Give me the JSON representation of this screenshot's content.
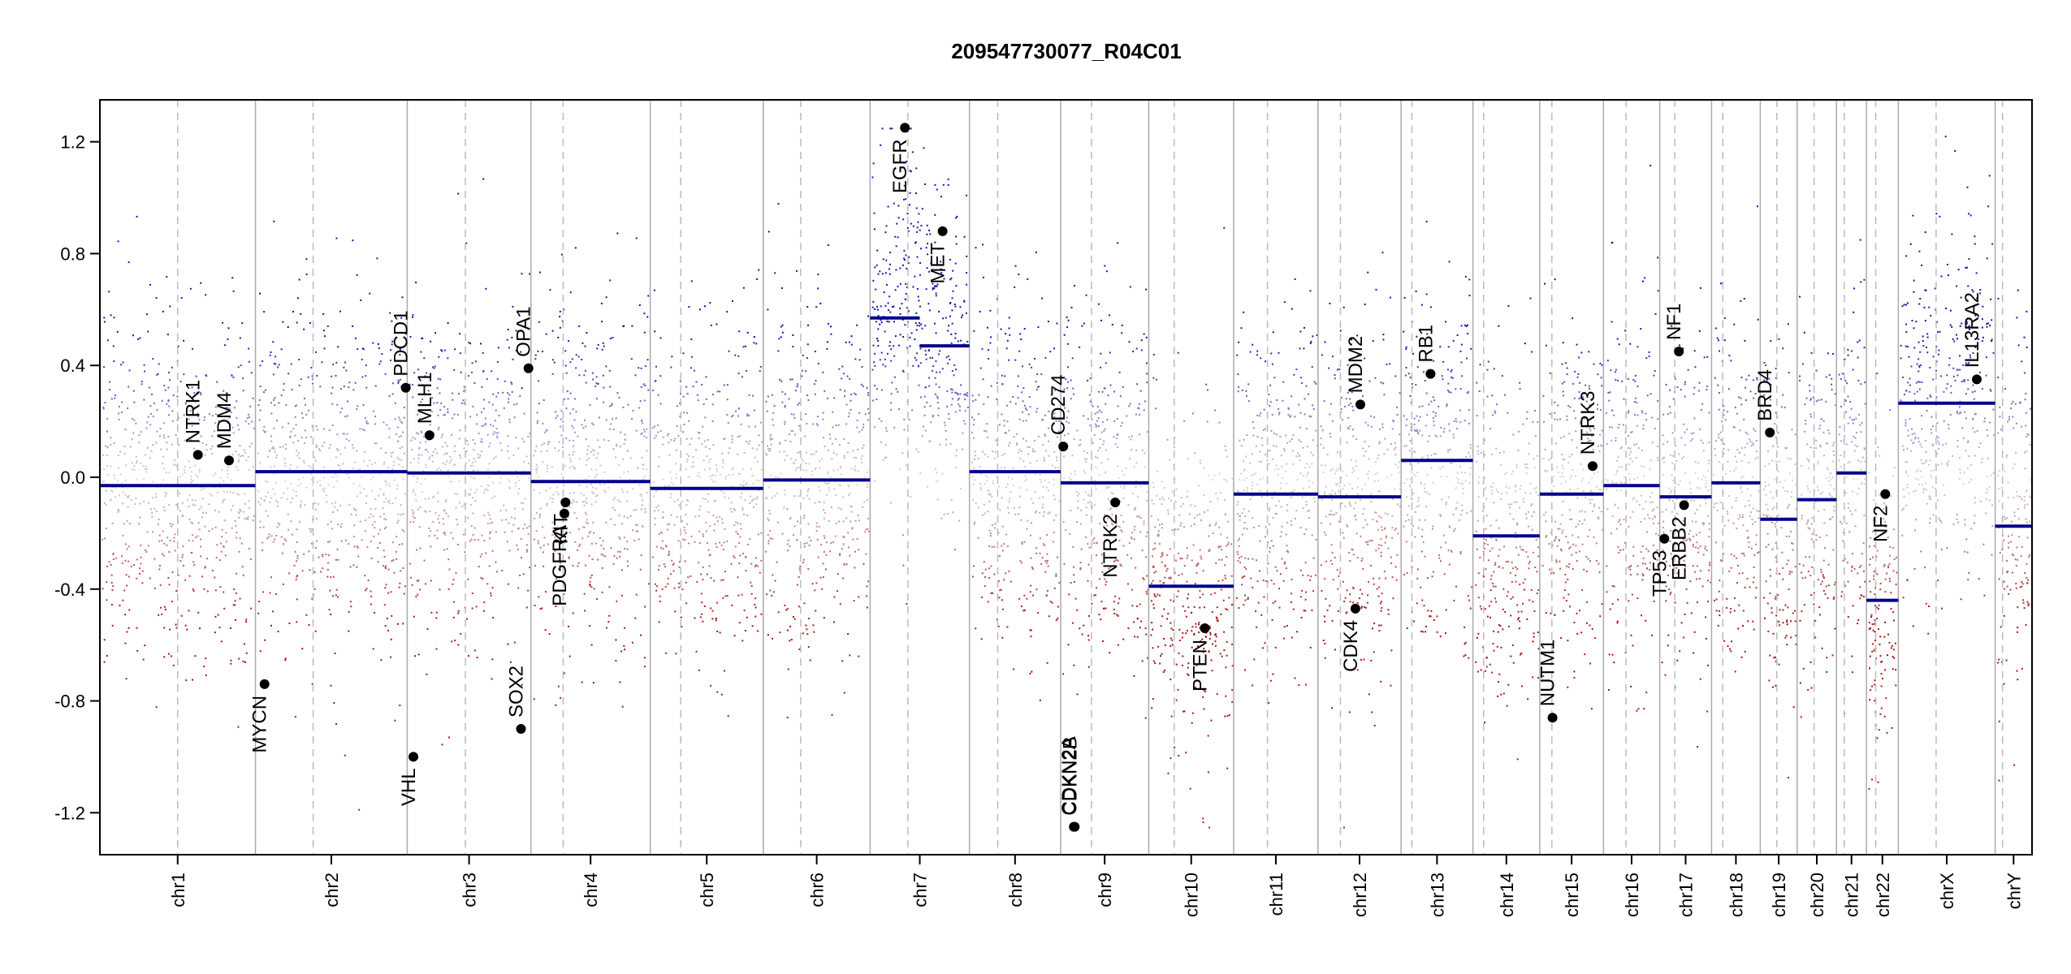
{
  "chart_data": {
    "type": "scatter",
    "title": "209547730077_R04C01",
    "xlabel": "",
    "ylabel": "",
    "ylim": [
      -1.35,
      1.35
    ],
    "yticks": [
      "1.2",
      "0.8",
      "0.4",
      "0.0",
      "-0.4",
      "-0.8",
      "-1.2"
    ],
    "colors": {
      "gain": "#1a1aa8",
      "loss": "#b01a1a",
      "segment": "#00008b",
      "separator": "#aaaaaa",
      "marker": "#000000"
    },
    "chromosomes": [
      {
        "name": "chr1",
        "length": 249,
        "centromere": 0.5,
        "segments": [
          -0.03
        ]
      },
      {
        "name": "chr2",
        "length": 243,
        "centromere": 0.38,
        "segments": [
          0.02
        ]
      },
      {
        "name": "chr3",
        "length": 198,
        "centromere": 0.47,
        "segments": [
          0.015
        ]
      },
      {
        "name": "chr4",
        "length": 191,
        "centromere": 0.27,
        "segments": [
          -0.015
        ]
      },
      {
        "name": "chr5",
        "length": 181,
        "centromere": 0.27,
        "segments": [
          -0.04
        ]
      },
      {
        "name": "chr6",
        "length": 171,
        "centromere": 0.35,
        "segments": [
          -0.01
        ]
      },
      {
        "name": "chr7",
        "length": 159,
        "centromere": 0.38,
        "segments": [
          0.57,
          0.47
        ]
      },
      {
        "name": "chr8",
        "length": 146,
        "centromere": 0.31,
        "segments": [
          0.02
        ]
      },
      {
        "name": "chr9",
        "length": 141,
        "centromere": 0.35,
        "segments": [
          -0.02
        ]
      },
      {
        "name": "chr10",
        "length": 136,
        "centromere": 0.3,
        "segments": [
          -0.39
        ]
      },
      {
        "name": "chr11",
        "length": 135,
        "centromere": 0.4,
        "segments": [
          -0.06
        ]
      },
      {
        "name": "chr12",
        "length": 133,
        "centromere": 0.27,
        "segments": [
          -0.07
        ]
      },
      {
        "name": "chr13",
        "length": 115,
        "centromere": 0.15,
        "segments": [
          0.06
        ]
      },
      {
        "name": "chr14",
        "length": 107,
        "centromere": 0.16,
        "segments": [
          -0.21
        ]
      },
      {
        "name": "chr15",
        "length": 102,
        "centromere": 0.19,
        "segments": [
          -0.06
        ]
      },
      {
        "name": "chr16",
        "length": 90,
        "centromere": 0.4,
        "segments": [
          -0.03
        ]
      },
      {
        "name": "chr17",
        "length": 83,
        "centromere": 0.29,
        "segments": [
          -0.07
        ]
      },
      {
        "name": "chr18",
        "length": 78,
        "centromere": 0.23,
        "segments": [
          -0.02
        ]
      },
      {
        "name": "chr19",
        "length": 59,
        "centromere": 0.45,
        "segments": [
          -0.15
        ]
      },
      {
        "name": "chr20",
        "length": 63,
        "centromere": 0.43,
        "segments": [
          -0.08
        ]
      },
      {
        "name": "chr21",
        "length": 48,
        "centromere": 0.26,
        "segments": [
          0.015
        ]
      },
      {
        "name": "chr22",
        "length": 51,
        "centromere": 0.29,
        "segments": [
          -0.44
        ]
      },
      {
        "name": "chrX",
        "length": 155,
        "centromere": 0.39,
        "segments": [
          0.265
        ]
      },
      {
        "name": "chrY",
        "length": 59,
        "centromere": 0.2,
        "segments": [
          -0.175
        ]
      }
    ],
    "genes": [
      {
        "name": "NTRK1",
        "chr": "chr1",
        "pos": 0.63,
        "value": 0.08,
        "label_side": "above"
      },
      {
        "name": "MDM4",
        "chr": "chr1",
        "pos": 0.83,
        "value": 0.06,
        "label_side": "above"
      },
      {
        "name": "MYCN",
        "chr": "chr2",
        "pos": 0.06,
        "value": -0.74,
        "label_side": "below"
      },
      {
        "name": "PDCD1",
        "chr": "chr2",
        "pos": 0.99,
        "value": 0.32,
        "label_side": "above"
      },
      {
        "name": "VHL",
        "chr": "chr3",
        "pos": 0.05,
        "value": -1.0,
        "label_side": "below"
      },
      {
        "name": "MLH1",
        "chr": "chr3",
        "pos": 0.18,
        "value": 0.15,
        "label_side": "above"
      },
      {
        "name": "SOX2",
        "chr": "chr3",
        "pos": 0.92,
        "value": -0.9,
        "label_side": "above"
      },
      {
        "name": "OPA1",
        "chr": "chr3",
        "pos": 0.98,
        "value": 0.39,
        "label_side": "above"
      },
      {
        "name": "PDGFRA",
        "chr": "chr4",
        "pos": 0.28,
        "value": -0.13,
        "label_side": "below"
      },
      {
        "name": "KIT",
        "chr": "chr4",
        "pos": 0.29,
        "value": -0.09,
        "label_side": "below"
      },
      {
        "name": "EGFR",
        "chr": "chr7",
        "pos": 0.35,
        "value": 1.25,
        "label_side": "below"
      },
      {
        "name": "MET",
        "chr": "chr7",
        "pos": 0.73,
        "value": 0.88,
        "label_side": "below"
      },
      {
        "name": "CD274",
        "chr": "chr9",
        "pos": 0.03,
        "value": 0.11,
        "label_side": "above"
      },
      {
        "name": "CDKN2A",
        "chr": "chr9",
        "pos": 0.15,
        "value": -1.25,
        "label_side": "above"
      },
      {
        "name": "CDKN2B",
        "chr": "chr9",
        "pos": 0.16,
        "value": -1.25,
        "label_side": "above"
      },
      {
        "name": "NTRK2",
        "chr": "chr9",
        "pos": 0.62,
        "value": -0.09,
        "label_side": "below"
      },
      {
        "name": "PTEN",
        "chr": "chr10",
        "pos": 0.66,
        "value": -0.54,
        "label_side": "below"
      },
      {
        "name": "CDK4",
        "chr": "chr12",
        "pos": 0.45,
        "value": -0.47,
        "label_side": "below"
      },
      {
        "name": "MDM2",
        "chr": "chr12",
        "pos": 0.51,
        "value": 0.26,
        "label_side": "above"
      },
      {
        "name": "RB1",
        "chr": "chr13",
        "pos": 0.41,
        "value": 0.37,
        "label_side": "above"
      },
      {
        "name": "NUTM1",
        "chr": "chr15",
        "pos": 0.2,
        "value": -0.86,
        "label_side": "above"
      },
      {
        "name": "NTRK3",
        "chr": "chr15",
        "pos": 0.83,
        "value": 0.04,
        "label_side": "above"
      },
      {
        "name": "TP53",
        "chr": "chr17",
        "pos": 0.09,
        "value": -0.22,
        "label_side": "below"
      },
      {
        "name": "NF1",
        "chr": "chr17",
        "pos": 0.37,
        "value": 0.45,
        "label_side": "above"
      },
      {
        "name": "ERBB2",
        "chr": "chr17",
        "pos": 0.47,
        "value": -0.1,
        "label_side": "below"
      },
      {
        "name": "BRD4",
        "chr": "chr19",
        "pos": 0.26,
        "value": 0.16,
        "label_side": "above"
      },
      {
        "name": "NF2",
        "chr": "chr22",
        "pos": 0.59,
        "value": -0.06,
        "label_side": "below"
      },
      {
        "name": "IL13RA2",
        "chr": "chrX",
        "pos": 0.81,
        "value": 0.35,
        "label_side": "above"
      }
    ]
  }
}
